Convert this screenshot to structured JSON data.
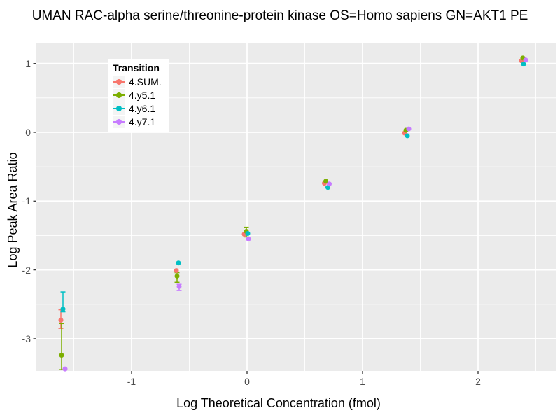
{
  "chart_data": {
    "type": "scatter",
    "title": "UMAN RAC-alpha serine/threonine-protein kinase OS=Homo sapiens GN=AKT1 PE",
    "xlabel": "Log Theoretical Concentration (fmol)",
    "ylabel": "Log Peak Area Ratio",
    "xlim": [
      -1.82,
      2.68
    ],
    "ylim": [
      -3.47,
      1.29
    ],
    "x_ticks": [
      -1,
      0,
      1,
      2
    ],
    "y_ticks": [
      1,
      0,
      -1,
      -2,
      -3
    ],
    "x_minor_ticks": [
      -1.5,
      -0.5,
      0.5,
      1.5,
      2.5
    ],
    "y_minor_ticks": [
      0.5,
      -0.5,
      -1.5,
      -2.5
    ],
    "panel_bg": "#EBEBEB",
    "grid_color": "#FFFFFF",
    "tick_color": "#333333",
    "tick_label_color": "#4D4D4D",
    "legend": {
      "title": "Transition",
      "position": "top-left-inside"
    },
    "series": [
      {
        "name": "4.SUM.",
        "color": "#F8766D",
        "points": [
          {
            "x": -1.6,
            "dodge": -2,
            "y": -2.73,
            "ylo": -2.58,
            "yhi": -2.85
          },
          {
            "x": -0.6,
            "dodge": -2,
            "y": -2.01
          },
          {
            "x": 0.0,
            "dodge": -4,
            "y": -1.48
          },
          {
            "x": 0.7,
            "dodge": -5,
            "y": -0.74
          },
          {
            "x": 1.4,
            "dodge": -6,
            "y": -0.01
          },
          {
            "x": 2.4,
            "dodge": -4,
            "y": 1.04
          }
        ]
      },
      {
        "name": "4.y5.1",
        "color": "#7CAE00",
        "points": [
          {
            "x": -1.6,
            "dodge": -1,
            "y": -3.24,
            "ylo": -2.78,
            "yhi": -3.45
          },
          {
            "x": -0.6,
            "dodge": -1,
            "y": -2.09,
            "ylo": -2.04,
            "yhi": -2.18
          },
          {
            "x": 0.0,
            "dodge": -1,
            "y": -1.44,
            "ylo": -1.38,
            "yhi": -1.52
          },
          {
            "x": 0.7,
            "dodge": -3,
            "y": -0.71
          },
          {
            "x": 1.4,
            "dodge": -4,
            "y": 0.03
          },
          {
            "x": 2.4,
            "dodge": -2,
            "y": 1.08
          }
        ]
      },
      {
        "name": "4.y6.1",
        "color": "#00BFC4",
        "points": [
          {
            "x": -1.6,
            "dodge": 1,
            "y": -2.57,
            "ylo": -2.32,
            "yhi": -2.61
          },
          {
            "x": -0.6,
            "dodge": 1,
            "y": -1.9
          },
          {
            "x": 0.0,
            "dodge": 1,
            "y": -1.47
          },
          {
            "x": 0.7,
            "dodge": 0,
            "y": -0.8
          },
          {
            "x": 1.4,
            "dodge": -2,
            "y": -0.05
          },
          {
            "x": 2.4,
            "dodge": -1,
            "y": 0.99
          }
        ]
      },
      {
        "name": "4.y7.1",
        "color": "#C77CFF",
        "points": [
          {
            "x": -1.6,
            "dodge": 4,
            "y": -3.44
          },
          {
            "x": -0.6,
            "dodge": 2,
            "y": -2.24,
            "ylo": -2.21,
            "yhi": -2.3
          },
          {
            "x": 0.0,
            "dodge": 2,
            "y": -1.55
          },
          {
            "x": 0.7,
            "dodge": 2,
            "y": -0.75
          },
          {
            "x": 1.4,
            "dodge": 0,
            "y": 0.05
          },
          {
            "x": 2.4,
            "dodge": 2,
            "y": 1.05
          }
        ]
      }
    ]
  }
}
